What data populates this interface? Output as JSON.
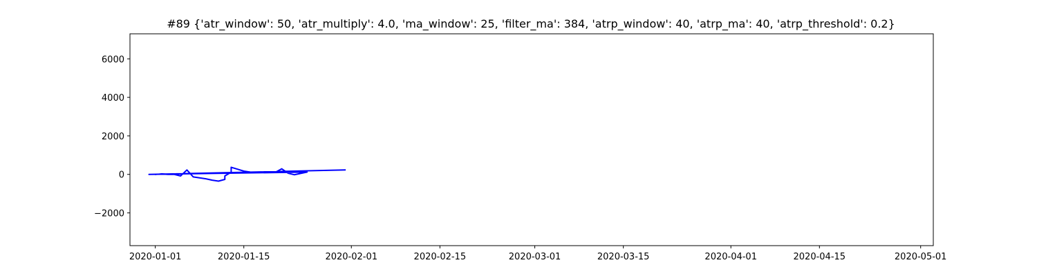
{
  "chart_data": {
    "type": "line",
    "title": "#89 {'atr_window': 50, 'atr_multiply': 4.0, 'ma_window': 25, 'filter_ma': 384, 'atrp_window': 40, 'atrp_ma': 40, 'atrp_threshold': 0.2}",
    "xlabel": "",
    "ylabel": "",
    "x_axis_type": "date",
    "xlim": [
      "2019-12-28",
      "2020-05-03"
    ],
    "ylim": [
      -3700,
      7300
    ],
    "x_ticks": [
      "2020-01-01",
      "2020-01-15",
      "2020-02-01",
      "2020-02-15",
      "2020-03-01",
      "2020-03-15",
      "2020-04-01",
      "2020-04-15",
      "2020-05-01"
    ],
    "y_ticks": [
      -2000,
      0,
      2000,
      4000,
      6000
    ],
    "y_tick_labels": [
      "−2000",
      "0",
      "2000",
      "4000",
      "6000"
    ],
    "grid": false,
    "legend": "none",
    "series": [
      {
        "color": "#0000ff",
        "points": [
          [
            "2020-01-01",
            0
          ],
          [
            "2020-01-01",
            -10
          ],
          [
            "2020-01-02",
            20
          ],
          [
            "2020-01-03",
            0
          ],
          [
            "2020-01-04",
            0
          ],
          [
            "2020-01-05",
            -80
          ],
          [
            "2020-01-06",
            230
          ],
          [
            "2020-01-07",
            -130
          ],
          [
            "2020-01-09",
            -230
          ],
          [
            "2020-01-10",
            -300
          ],
          [
            "2020-01-11",
            -350
          ],
          [
            "2020-01-12",
            -260
          ],
          [
            "2020-01-12",
            -80
          ],
          [
            "2020-01-13",
            110
          ],
          [
            "2020-01-13",
            370
          ],
          [
            "2020-01-14",
            270
          ],
          [
            "2020-01-15",
            170
          ],
          [
            "2020-01-16",
            120
          ],
          [
            "2020-01-20",
            110
          ],
          [
            "2020-01-21",
            290
          ],
          [
            "2020-01-22",
            60
          ],
          [
            "2020-01-23",
            -20
          ],
          [
            "2020-01-25",
            120
          ],
          [
            "2019-12-31",
            0
          ],
          [
            "2020-01-31",
            230
          ]
        ]
      }
    ]
  }
}
